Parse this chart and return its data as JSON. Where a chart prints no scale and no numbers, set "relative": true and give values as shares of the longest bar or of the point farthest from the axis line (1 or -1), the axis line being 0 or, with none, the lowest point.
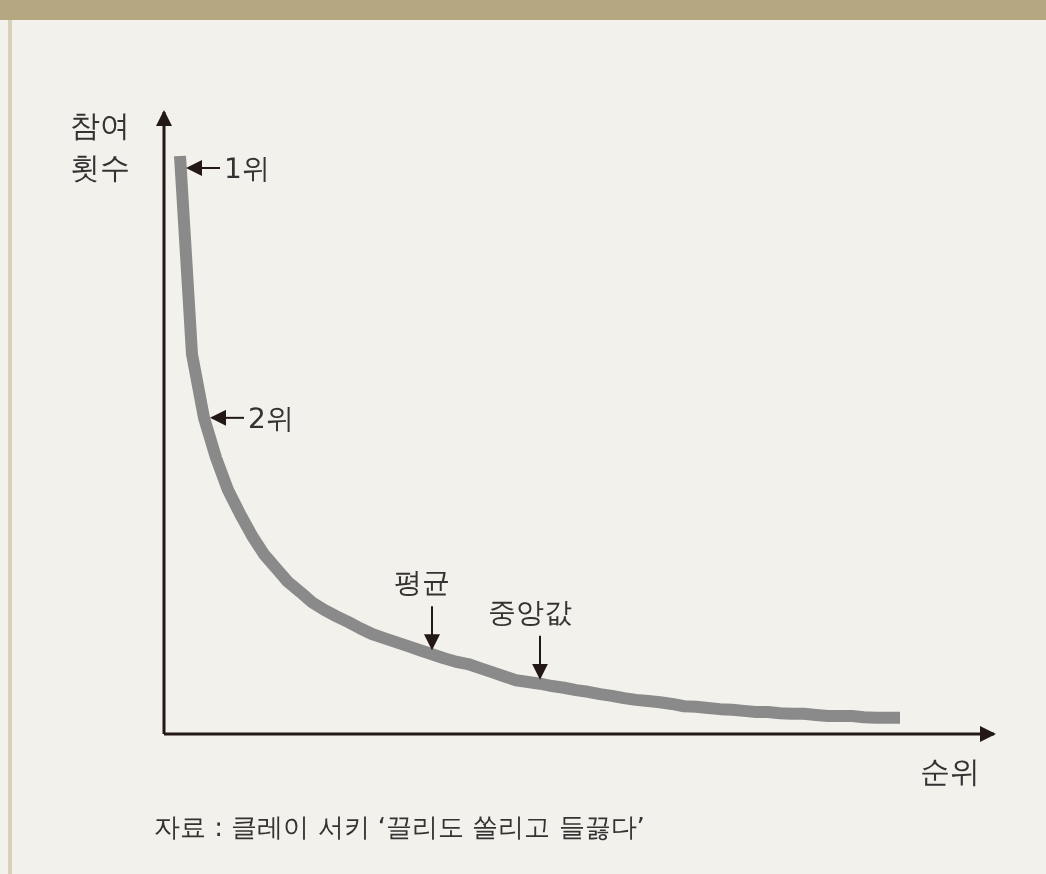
{
  "chart_data": {
    "type": "line",
    "relative": true,
    "xlabel": "순위",
    "ylabel": "참여 횟수",
    "categories": [
      null,
      null,
      null,
      null,
      null,
      null,
      null,
      null,
      null,
      null,
      null,
      null,
      null,
      null,
      null,
      null,
      null,
      null,
      null,
      null,
      null,
      null,
      null,
      null,
      null,
      null,
      null,
      null,
      null,
      null,
      null,
      null,
      null,
      null,
      null,
      null,
      null,
      null,
      null,
      null,
      null,
      null,
      null,
      null,
      null,
      null,
      null,
      null,
      null,
      null,
      null,
      null,
      null,
      null,
      null,
      null,
      null,
      null,
      null,
      null,
      null
    ],
    "series": [
      {
        "color": "#8a8a8a",
        "values": [
          1,
          0.657,
          0.547,
          0.478,
          0.422,
          0.381,
          0.343,
          0.311,
          0.287,
          0.263,
          0.246,
          0.228,
          0.215,
          0.204,
          0.194,
          0.183,
          0.173,
          0.166,
          0.159,
          0.152,
          0.145,
          0.138,
          0.131,
          0.125,
          0.121,
          0.114,
          0.107,
          0.1,
          0.093,
          0.09,
          0.087,
          0.083,
          0.08,
          0.076,
          0.073,
          0.069,
          0.066,
          0.062,
          0.059,
          0.057,
          0.055,
          0.052,
          0.048,
          0.047,
          0.045,
          0.043,
          0.042,
          0.04,
          0.038,
          0.038,
          0.036,
          0.035,
          0.035,
          0.033,
          0.031,
          0.031,
          0.031,
          0.029,
          0.028,
          0.028,
          0.028
        ]
      }
    ],
    "annotations": [
      "1위",
      "2위",
      "평균",
      "중앙값",
      "자료 : 클레이 서키 ‘끌리도 쏠리고 들끓다’"
    ]
  }
}
